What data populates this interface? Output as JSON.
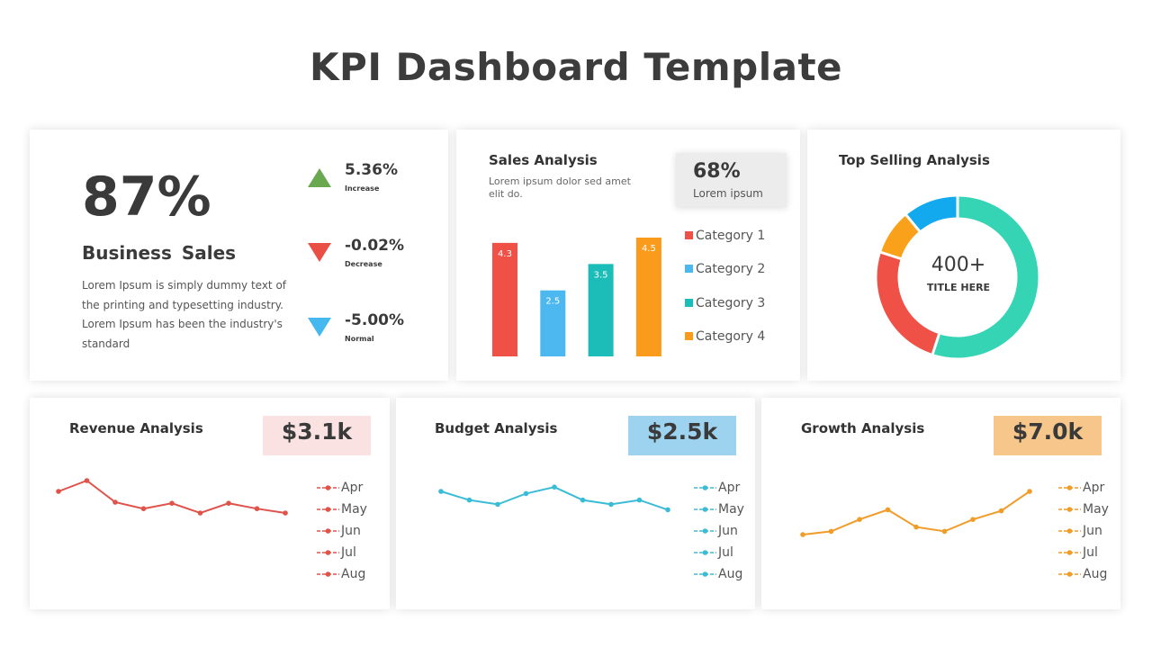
{
  "title": "KPI Dashboard Template",
  "business": {
    "value": "87%",
    "title": "Business Sales",
    "description": "Lorem Ipsum is simply dummy text of the printing and typesetting industry. Lorem Ipsum has been the industry's standard",
    "kpis": [
      {
        "value": "5.36%",
        "label": "Increase",
        "icon": "triangle-up-icon",
        "color": "#6aa84f"
      },
      {
        "value": "-0.02%",
        "label": "Decrease",
        "icon": "triangle-down-icon",
        "color": "#ea4f45"
      },
      {
        "value": "-5.00%",
        "label": "Normal",
        "icon": "triangle-down-icon",
        "color": "#45b8ef"
      }
    ]
  },
  "sales": {
    "title": "Sales Analysis",
    "description": "Lorem ipsum dolor sed amet elit do.",
    "highlight_value": "68%",
    "highlight_label": "Lorem ipsum"
  },
  "top_selling": {
    "title": "Top Selling Analysis",
    "center_value": "400+",
    "center_label": "TITLE HERE"
  },
  "revenue": {
    "title": "Revenue Analysis",
    "value": "$3.1k",
    "box_color": "#f9e2e1",
    "line_color": "#e0534b"
  },
  "budget": {
    "title": "Budget Analysis",
    "value": "$2.5k",
    "box_color": "#9dd3ef",
    "line_color": "#3bbcd6"
  },
  "growth": {
    "title": "Growth Analysis",
    "value": "$7.0k",
    "box_color": "#f6c68a",
    "line_color": "#f19c29"
  },
  "chart_data": [
    {
      "type": "bar",
      "categories": [
        "Category 1",
        "Category 2",
        "Category 3",
        "Category 4"
      ],
      "values": [
        4.3,
        2.5,
        3.5,
        4.5
      ],
      "colors": [
        "#ef5147",
        "#4db8ef",
        "#1cbdb8",
        "#fa9b1c"
      ],
      "ylim": [
        0,
        5
      ],
      "legend": "right",
      "grid": false
    },
    {
      "type": "pie",
      "donut": true,
      "values": [
        55,
        25,
        9,
        11
      ],
      "colors": [
        "#35d4b5",
        "#ef5147",
        "#f9a11b",
        "#13a9ef"
      ]
    },
    {
      "type": "line",
      "name": "revenue",
      "values": [
        8,
        9,
        7,
        6.4,
        6.9,
        6,
        6.9,
        6.4,
        6
      ],
      "ylim": [
        0,
        10
      ],
      "legend": [
        "Apr",
        "May",
        "Jun",
        "Jul",
        "Aug"
      ]
    },
    {
      "type": "line",
      "name": "budget",
      "values": [
        8,
        7.2,
        6.8,
        7.8,
        8.4,
        7.2,
        6.8,
        7.2,
        6.3
      ],
      "ylim": [
        0,
        10
      ],
      "legend": [
        "Apr",
        "May",
        "Jun",
        "Jul",
        "Aug"
      ]
    },
    {
      "type": "line",
      "name": "growth",
      "values": [
        4,
        4.3,
        5.4,
        6.3,
        4.7,
        4.3,
        5.4,
        6.2,
        8
      ],
      "ylim": [
        0,
        10
      ],
      "legend": [
        "Apr",
        "May",
        "Jun",
        "Jul",
        "Aug"
      ]
    }
  ]
}
